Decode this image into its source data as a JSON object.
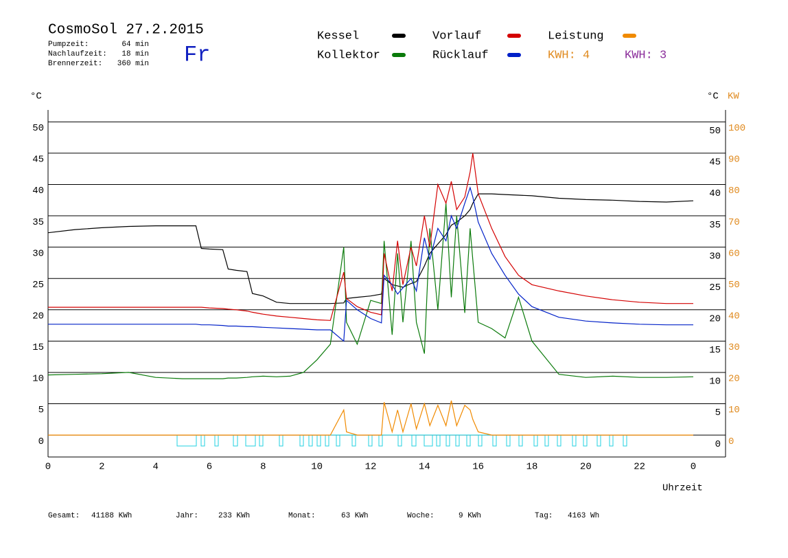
{
  "chart_data": {
    "type": "line",
    "title": "CosmoSol 27.2.2015",
    "info": [
      [
        "Pumpzeit:",
        "64 min"
      ],
      [
        "Nachlaufzeit:",
        "18 min"
      ],
      [
        "Brennerzeit:",
        "360 min"
      ]
    ],
    "day": "Fr",
    "kwh_labels": [
      {
        "text": "KWH: 4",
        "color": "#e08a1e"
      },
      {
        "text": "KWH: 3",
        "color": "#8a2c9a"
      }
    ],
    "ylabel": "°C",
    "y2label_unit": "°C",
    "y2label": "KW",
    "xlabel": "Uhrzeit",
    "footer": [
      [
        "Gesamt:",
        "41188 KWh"
      ],
      [
        "Jahr:",
        "233 KWh"
      ],
      [
        "Monat:",
        "63 KWh"
      ],
      [
        "Woche:",
        "9 KWh"
      ],
      [
        "Tag:",
        "4163 Wh"
      ]
    ],
    "xlim": [
      0,
      25.2
    ],
    "xticks": [
      0,
      2,
      4,
      6,
      8,
      10,
      12,
      14,
      16,
      18,
      20,
      22,
      {
        "value": 24,
        "label": "0"
      }
    ],
    "ylim": [
      -3.5,
      51.9
    ],
    "yticks": [
      0,
      5,
      10,
      15,
      20,
      25,
      30,
      35,
      40,
      45,
      50
    ],
    "y2lim": [
      -7,
      103.8
    ],
    "y2ticks": [
      0,
      10,
      20,
      30,
      40,
      50,
      60,
      70,
      80,
      90,
      100
    ],
    "grid": true,
    "x": [
      0,
      1,
      2,
      3,
      4,
      5,
      5.5,
      5.7,
      6,
      6.5,
      6.7,
      7,
      7.4,
      7.6,
      8,
      8.5,
      9,
      9.5,
      10,
      10.5,
      11,
      11.1,
      11.5,
      12,
      12.4,
      12.5,
      12.8,
      13,
      13.2,
      13.5,
      13.7,
      14,
      14.2,
      14.5,
      14.8,
      15,
      15.2,
      15.5,
      15.7,
      15.8,
      16,
      16.5,
      17,
      17.5,
      18,
      19,
      20,
      21,
      22,
      23,
      24
    ],
    "series": [
      {
        "name": "Kessel",
        "color": "#000000",
        "values": [
          32.3,
          32.8,
          33.1,
          33.3,
          33.4,
          33.4,
          33.4,
          29.8,
          29.7,
          29.6,
          26.5,
          26.3,
          26.1,
          22.6,
          22.2,
          21.2,
          21,
          21,
          21,
          21,
          21.1,
          21.8,
          22,
          22.2,
          22.5,
          25,
          24,
          23.8,
          23.6,
          24.2,
          24.5,
          27,
          29,
          30.5,
          32,
          33.5,
          34,
          35,
          36,
          37,
          38.5,
          38.5,
          38.4,
          38.3,
          38.2,
          37.8,
          37.6,
          37.5,
          37.3,
          37.2,
          37.4
        ]
      },
      {
        "name": "Kollektor",
        "color": "#0a7a0a",
        "values": [
          9.6,
          9.7,
          9.8,
          10,
          9.2,
          9,
          9,
          9,
          9,
          9,
          9.1,
          9.1,
          9.2,
          9.3,
          9.4,
          9.3,
          9.4,
          10,
          12,
          14.5,
          30,
          18,
          14.5,
          21.5,
          21,
          31,
          16,
          29,
          18,
          31,
          18,
          13,
          33,
          20,
          37,
          22,
          35,
          19.5,
          33,
          28,
          18,
          17,
          15.5,
          22,
          15,
          9.7,
          9.2,
          9.4,
          9.2,
          9.2,
          9.3
        ]
      },
      {
        "name": "Vorlauf",
        "color": "#d40000",
        "values": [
          20.4,
          20.4,
          20.4,
          20.4,
          20.4,
          20.4,
          20.4,
          20.4,
          20.3,
          20.2,
          20.1,
          20,
          19.8,
          19.6,
          19.3,
          19,
          18.8,
          18.6,
          18.4,
          18.3,
          26,
          21.8,
          20.5,
          19.6,
          19.2,
          29,
          23,
          31,
          24,
          30,
          27,
          35,
          30,
          40,
          37,
          40.5,
          36,
          38,
          42,
          45,
          38.5,
          33,
          28.5,
          25.5,
          24,
          23,
          22.2,
          21.6,
          21.2,
          21,
          21
        ]
      },
      {
        "name": "Rücklauf",
        "color": "#0020c8",
        "values": [
          17.7,
          17.7,
          17.7,
          17.7,
          17.7,
          17.7,
          17.7,
          17.6,
          17.6,
          17.5,
          17.4,
          17.4,
          17.3,
          17.3,
          17.2,
          17.1,
          17,
          16.9,
          16.8,
          16.8,
          15,
          21.5,
          20,
          18.6,
          17.9,
          25.5,
          24,
          22.5,
          23.5,
          25,
          23,
          31.5,
          28,
          33,
          31,
          35,
          33,
          37,
          39.5,
          38,
          34,
          29,
          25.5,
          22.5,
          20.5,
          18.8,
          18.2,
          17.9,
          17.7,
          17.6,
          17.6
        ]
      },
      {
        "name": "Leistung",
        "color": "#f08a00",
        "axis": "y2",
        "values": [
          0,
          0,
          0,
          0,
          0,
          0,
          0,
          0,
          0,
          0,
          0,
          0,
          0,
          0,
          0,
          0,
          0,
          0,
          0,
          0,
          8,
          1,
          0,
          0,
          0,
          10.5,
          1,
          8,
          1,
          10,
          2,
          10,
          3,
          9.5,
          3,
          11,
          3,
          9.5,
          8,
          5,
          1,
          0,
          0,
          0,
          0,
          0,
          0,
          0,
          0,
          0,
          0
        ]
      }
    ]
  }
}
